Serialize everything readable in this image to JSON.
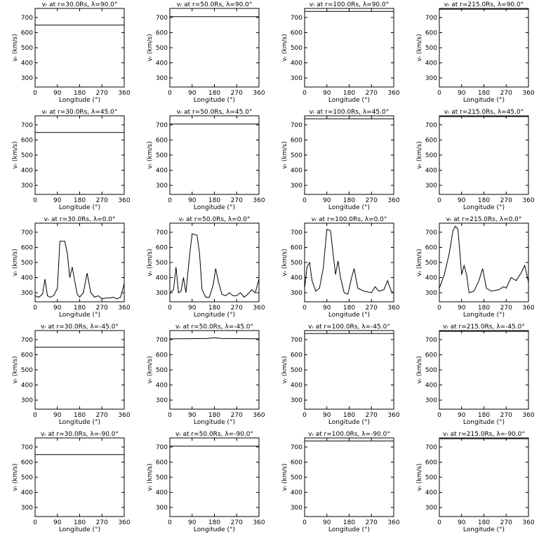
{
  "chart_data": [
    {
      "type": "line",
      "title": "vᵣ at r=30.0Rs, λ=90.0°",
      "x_label": "Longitude (°)",
      "y_label": "vᵣ (km/s)",
      "x": [
        0,
        360
      ],
      "values": [
        650,
        650
      ],
      "color": "#000000",
      "xlim": [
        0,
        360
      ],
      "ylim": [
        240,
        760
      ],
      "xticks": [
        0,
        90,
        180,
        270,
        360
      ],
      "yticks": [
        300,
        400,
        500,
        600,
        700
      ]
    },
    {
      "type": "line",
      "title": "vᵣ at r=50.0Rs, λ=90.0°",
      "x_label": "Longitude (°)",
      "y_label": "vᵣ (km/s)",
      "x": [
        0,
        360
      ],
      "values": [
        705,
        705
      ],
      "color": "#000000",
      "xlim": [
        0,
        360
      ],
      "ylim": [
        240,
        760
      ],
      "xticks": [
        0,
        90,
        180,
        270,
        360
      ],
      "yticks": [
        300,
        400,
        500,
        600,
        700
      ]
    },
    {
      "type": "line",
      "title": "vᵣ at r=100.0Rs, λ=90.0°",
      "x_label": "Longitude (°)",
      "y_label": "vᵣ (km/s)",
      "x": [
        0,
        360
      ],
      "values": [
        740,
        740
      ],
      "color": "#000000",
      "xlim": [
        0,
        360
      ],
      "ylim": [
        240,
        760
      ],
      "xticks": [
        0,
        90,
        180,
        270,
        360
      ],
      "yticks": [
        300,
        400,
        500,
        600,
        700
      ]
    },
    {
      "type": "line",
      "title": "vᵣ at r=215.0Rs, λ=90.0°",
      "x_label": "Longitude (°)",
      "y_label": "vᵣ (km/s)",
      "x": [
        0,
        360
      ],
      "values": [
        755,
        755
      ],
      "color": "#000000",
      "xlim": [
        0,
        360
      ],
      "ylim": [
        240,
        760
      ],
      "xticks": [
        0,
        90,
        180,
        270,
        360
      ],
      "yticks": [
        300,
        400,
        500,
        600,
        700
      ]
    },
    {
      "type": "line",
      "title": "vᵣ at r=30.0Rs, λ=45.0°",
      "x_label": "Longitude (°)",
      "y_label": "vᵣ (km/s)",
      "x": [
        0,
        360
      ],
      "values": [
        650,
        650
      ],
      "color": "#000000",
      "xlim": [
        0,
        360
      ],
      "ylim": [
        240,
        760
      ],
      "xticks": [
        0,
        90,
        180,
        270,
        360
      ],
      "yticks": [
        300,
        400,
        500,
        600,
        700
      ]
    },
    {
      "type": "line",
      "title": "vᵣ at r=50.0Rs, λ=45.0°",
      "x_label": "Longitude (°)",
      "y_label": "vᵣ (km/s)",
      "x": [
        0,
        360
      ],
      "values": [
        705,
        705
      ],
      "color": "#000000",
      "xlim": [
        0,
        360
      ],
      "ylim": [
        240,
        760
      ],
      "xticks": [
        0,
        90,
        180,
        270,
        360
      ],
      "yticks": [
        300,
        400,
        500,
        600,
        700
      ]
    },
    {
      "type": "line",
      "title": "vᵣ at r=100.0Rs, λ=45.0°",
      "x_label": "Longitude (°)",
      "y_label": "vᵣ (km/s)",
      "x": [
        0,
        360
      ],
      "values": [
        740,
        740
      ],
      "color": "#000000",
      "xlim": [
        0,
        360
      ],
      "ylim": [
        240,
        760
      ],
      "xticks": [
        0,
        90,
        180,
        270,
        360
      ],
      "yticks": [
        300,
        400,
        500,
        600,
        700
      ]
    },
    {
      "type": "line",
      "title": "vᵣ at r=215.0Rs, λ=45.0°",
      "x_label": "Longitude (°)",
      "y_label": "vᵣ (km/s)",
      "x": [
        0,
        360
      ],
      "values": [
        755,
        755
      ],
      "color": "#000000",
      "xlim": [
        0,
        360
      ],
      "ylim": [
        240,
        760
      ],
      "xticks": [
        0,
        90,
        180,
        270,
        360
      ],
      "yticks": [
        300,
        400,
        500,
        600,
        700
      ]
    },
    {
      "type": "line",
      "title": "vᵣ at r=30.0Rs, λ=0.0°",
      "x_label": "Longitude (°)",
      "y_label": "vᵣ (km/s)",
      "x": [
        0,
        15,
        30,
        40,
        50,
        60,
        75,
        90,
        100,
        120,
        130,
        140,
        150,
        160,
        170,
        180,
        195,
        210,
        225,
        240,
        255,
        270,
        285,
        300,
        315,
        330,
        345,
        360
      ],
      "values": [
        280,
        270,
        290,
        390,
        280,
        270,
        280,
        330,
        640,
        640,
        560,
        400,
        470,
        380,
        290,
        270,
        300,
        430,
        300,
        270,
        280,
        260,
        265,
        265,
        270,
        260,
        270,
        360
      ],
      "color": "#000000",
      "xlim": [
        0,
        360
      ],
      "ylim": [
        240,
        760
      ],
      "xticks": [
        0,
        90,
        180,
        270,
        360
      ],
      "yticks": [
        300,
        400,
        500,
        600,
        700
      ]
    },
    {
      "type": "line",
      "title": "vᵣ at r=50.0Rs, λ=0.0°",
      "x_label": "Longitude (°)",
      "y_label": "vᵣ (km/s)",
      "x": [
        0,
        15,
        25,
        35,
        45,
        55,
        65,
        80,
        90,
        110,
        120,
        130,
        145,
        160,
        175,
        185,
        195,
        210,
        225,
        240,
        255,
        270,
        285,
        300,
        315,
        330,
        345,
        360
      ],
      "values": [
        300,
        320,
        470,
        300,
        310,
        400,
        300,
        550,
        690,
        680,
        560,
        320,
        270,
        270,
        350,
        460,
        380,
        290,
        280,
        300,
        280,
        280,
        300,
        270,
        290,
        320,
        300,
        390
      ],
      "color": "#000000",
      "xlim": [
        0,
        360
      ],
      "ylim": [
        240,
        760
      ],
      "xticks": [
        0,
        90,
        180,
        270,
        360
      ],
      "yticks": [
        300,
        400,
        500,
        600,
        700
      ]
    },
    {
      "type": "line",
      "title": "vᵣ at r=100.0Rs, λ=0.0°",
      "x_label": "Longitude (°)",
      "y_label": "vᵣ (km/s)",
      "x": [
        0,
        10,
        20,
        30,
        45,
        60,
        75,
        90,
        105,
        115,
        125,
        135,
        145,
        160,
        175,
        190,
        200,
        215,
        240,
        270,
        285,
        300,
        320,
        335,
        350,
        360
      ],
      "values": [
        330,
        470,
        500,
        380,
        310,
        330,
        460,
        720,
        710,
        560,
        420,
        510,
        400,
        300,
        290,
        400,
        460,
        330,
        310,
        300,
        340,
        310,
        320,
        380,
        310,
        300
      ],
      "color": "#000000",
      "xlim": [
        0,
        360
      ],
      "ylim": [
        240,
        760
      ],
      "xticks": [
        0,
        90,
        180,
        270,
        360
      ],
      "yticks": [
        300,
        400,
        500,
        600,
        700
      ]
    },
    {
      "type": "line",
      "title": "vᵣ at r=215.0Rs, λ=0.0°",
      "x_label": "Longitude (°)",
      "y_label": "vᵣ (km/s)",
      "x": [
        0,
        20,
        40,
        55,
        65,
        75,
        90,
        100,
        110,
        120,
        140,
        160,
        175,
        190,
        210,
        240,
        260,
        270,
        290,
        310,
        330,
        345,
        360
      ],
      "values": [
        330,
        420,
        560,
        710,
        740,
        720,
        420,
        480,
        420,
        300,
        310,
        380,
        460,
        330,
        310,
        320,
        340,
        330,
        400,
        380,
        430,
        480,
        370
      ],
      "color": "#000000",
      "xlim": [
        0,
        360
      ],
      "ylim": [
        240,
        760
      ],
      "xticks": [
        0,
        90,
        180,
        270,
        360
      ],
      "yticks": [
        300,
        400,
        500,
        600,
        700
      ]
    },
    {
      "type": "line",
      "title": "vᵣ at r=30.0Rs, λ=-45.0°",
      "x_label": "Longitude (°)",
      "y_label": "vᵣ (km/s)",
      "x": [
        0,
        360
      ],
      "values": [
        650,
        650
      ],
      "color": "#000000",
      "xlim": [
        0,
        360
      ],
      "ylim": [
        240,
        760
      ],
      "xticks": [
        0,
        90,
        180,
        270,
        360
      ],
      "yticks": [
        300,
        400,
        500,
        600,
        700
      ]
    },
    {
      "type": "line",
      "title": "vᵣ at r=50.0Rs, λ=-45.0°",
      "x_label": "Longitude (°)",
      "y_label": "vᵣ (km/s)",
      "x": [
        0,
        150,
        180,
        210,
        360
      ],
      "values": [
        705,
        707,
        712,
        707,
        705
      ],
      "color": "#000000",
      "xlim": [
        0,
        360
      ],
      "ylim": [
        240,
        760
      ],
      "xticks": [
        0,
        90,
        180,
        270,
        360
      ],
      "yticks": [
        300,
        400,
        500,
        600,
        700
      ]
    },
    {
      "type": "line",
      "title": "vᵣ at r=100.0Rs, λ=-45.0°",
      "x_label": "Longitude (°)",
      "y_label": "vᵣ (km/s)",
      "x": [
        0,
        360
      ],
      "values": [
        740,
        740
      ],
      "color": "#000000",
      "xlim": [
        0,
        360
      ],
      "ylim": [
        240,
        760
      ],
      "xticks": [
        0,
        90,
        180,
        270,
        360
      ],
      "yticks": [
        300,
        400,
        500,
        600,
        700
      ]
    },
    {
      "type": "line",
      "title": "vᵣ at r=215.0Rs, λ=-45.0°",
      "x_label": "Longitude (°)",
      "y_label": "vᵣ (km/s)",
      "x": [
        0,
        360
      ],
      "values": [
        755,
        755
      ],
      "color": "#000000",
      "xlim": [
        0,
        360
      ],
      "ylim": [
        240,
        760
      ],
      "xticks": [
        0,
        90,
        180,
        270,
        360
      ],
      "yticks": [
        300,
        400,
        500,
        600,
        700
      ]
    },
    {
      "type": "line",
      "title": "vᵣ at r=30.0Rs, λ=-90.0°",
      "x_label": "Longitude (°)",
      "y_label": "vᵣ (km/s)",
      "x": [
        0,
        360
      ],
      "values": [
        650,
        650
      ],
      "color": "#000000",
      "xlim": [
        0,
        360
      ],
      "ylim": [
        240,
        760
      ],
      "xticks": [
        0,
        90,
        180,
        270,
        360
      ],
      "yticks": [
        300,
        400,
        500,
        600,
        700
      ]
    },
    {
      "type": "line",
      "title": "vᵣ at r=50.0Rs, λ=-90.0°",
      "x_label": "Longitude (°)",
      "y_label": "vᵣ (km/s)",
      "x": [
        0,
        360
      ],
      "values": [
        705,
        705
      ],
      "color": "#000000",
      "xlim": [
        0,
        360
      ],
      "ylim": [
        240,
        760
      ],
      "xticks": [
        0,
        90,
        180,
        270,
        360
      ],
      "yticks": [
        300,
        400,
        500,
        600,
        700
      ]
    },
    {
      "type": "line",
      "title": "vᵣ at r=100.0Rs, λ=-90.0°",
      "x_label": "Longitude (°)",
      "y_label": "vᵣ (km/s)",
      "x": [
        0,
        360
      ],
      "values": [
        740,
        740
      ],
      "color": "#000000",
      "xlim": [
        0,
        360
      ],
      "ylim": [
        240,
        760
      ],
      "xticks": [
        0,
        90,
        180,
        270,
        360
      ],
      "yticks": [
        300,
        400,
        500,
        600,
        700
      ]
    },
    {
      "type": "line",
      "title": "vᵣ at r=215.0Rs, λ=-90.0°",
      "x_label": "Longitude (°)",
      "y_label": "vᵣ (km/s)",
      "x": [
        0,
        360
      ],
      "values": [
        755,
        755
      ],
      "color": "#000000",
      "xlim": [
        0,
        360
      ],
      "ylim": [
        240,
        760
      ],
      "xticks": [
        0,
        90,
        180,
        270,
        360
      ],
      "yticks": [
        300,
        400,
        500,
        600,
        700
      ]
    }
  ]
}
